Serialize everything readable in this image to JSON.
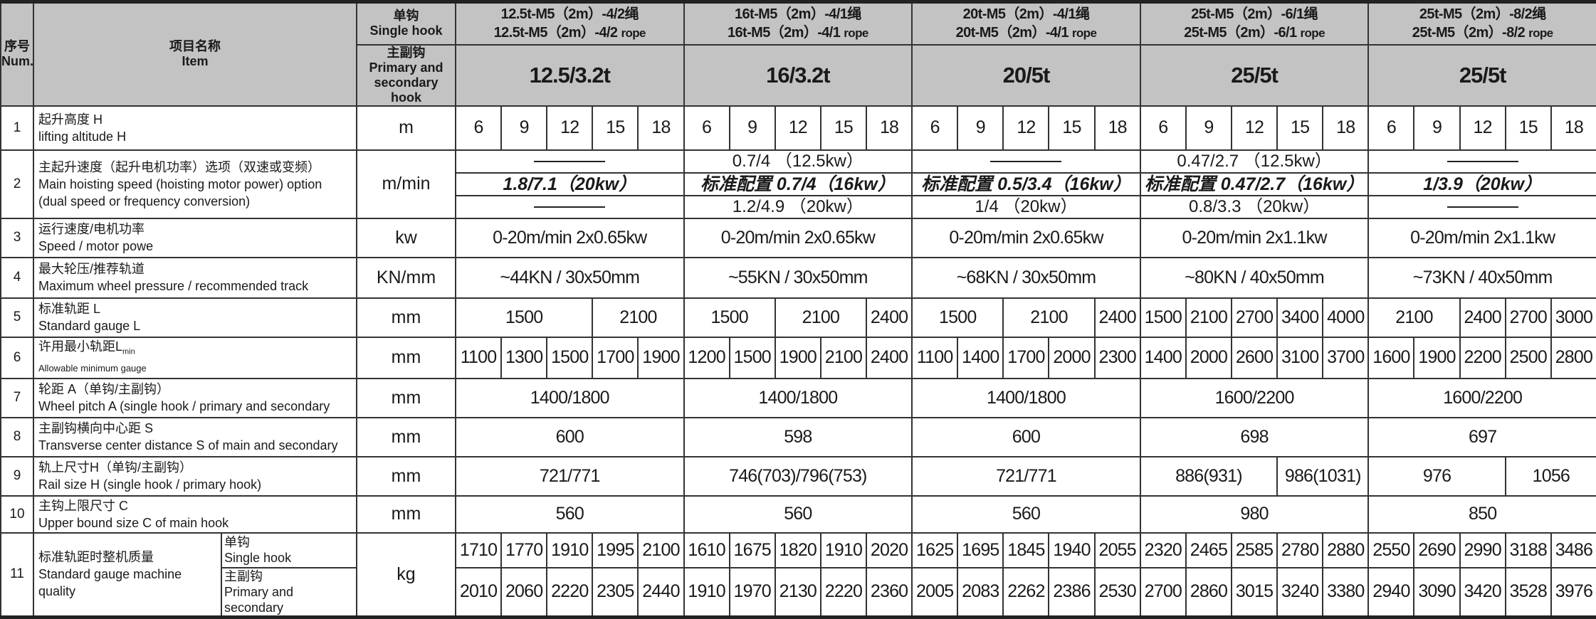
{
  "header": {
    "num_cn": "序号",
    "num_en": "Num.",
    "item_cn": "项目名称",
    "item_en": "Item",
    "single_cn": "单钩",
    "single_en": "Single hook",
    "primary_cn": "主副钩",
    "primary_en": "Primary and secondary hook",
    "groups": [
      {
        "line1": "12.5t-M5（2m）-4/2绳",
        "line2": "12.5t-M5（2m）-4/2",
        "rope": "rope",
        "capacity": "12.5/3.2t"
      },
      {
        "line1": "16t-M5（2m）-4/1绳",
        "line2": "16t-M5（2m）-4/1",
        "rope": "rope",
        "capacity": "16/3.2t"
      },
      {
        "line1": "20t-M5（2m）-4/1绳",
        "line2": "20t-M5（2m）-4/1",
        "rope": "rope",
        "capacity": "20/5t"
      },
      {
        "line1": "25t-M5（2m）-6/1绳",
        "line2": "25t-M5（2m）-6/1",
        "rope": "rope",
        "capacity": "25/5t"
      },
      {
        "line1": "25t-M5（2m）-8/2绳",
        "line2": "25t-M5（2m）-8/2",
        "rope": "rope",
        "capacity": "25/5t"
      }
    ]
  },
  "rows": [
    {
      "num": "1",
      "cn": "起升高度 H",
      "en": "lifting altitude H",
      "unit": "m",
      "groups": [
        [
          "6",
          "9",
          "12",
          "15",
          "18"
        ],
        [
          "6",
          "9",
          "12",
          "15",
          "18"
        ],
        [
          "6",
          "9",
          "12",
          "15",
          "18"
        ],
        [
          "6",
          "9",
          "12",
          "15",
          "18"
        ],
        [
          "6",
          "9",
          "12",
          "15",
          "18"
        ]
      ]
    },
    {
      "num": "2",
      "cn": "主起升速度（起升电机功率）选项（双速或变频）",
      "en": "Main hoisting speed (hoisting motor power) option",
      "en2": "(dual speed or frequency conversion)",
      "unit": "m/min",
      "speed": [
        [
          "—",
          "1.8/7.1（20kw）",
          "—"
        ],
        [
          "0.7/4 （12.5kw）",
          "标准配置 0.7/4（16kw）",
          "1.2/4.9 （20kw）"
        ],
        [
          "—",
          "标准配置 0.5/3.4（16kw）",
          "1/4 （20kw）"
        ],
        [
          "0.47/2.7 （12.5kw）",
          "标准配置 0.47/2.7（16kw）",
          "0.8/3.3 （20kw）"
        ],
        [
          "—",
          "1/3.9（20kw）",
          "—"
        ]
      ]
    },
    {
      "num": "3",
      "cn": "运行速度/电机功率",
      "en": "Speed / motor powe",
      "unit": "kw",
      "groups": [
        [
          "0-20m/min    2x0.65kw"
        ],
        [
          "0-20m/min    2x0.65kw"
        ],
        [
          "0-20m/min    2x0.65kw"
        ],
        [
          "0-20m/min    2x1.1kw"
        ],
        [
          "0-20m/min    2x1.1kw"
        ]
      ]
    },
    {
      "num": "4",
      "cn": "最大轮压/推荐轨道",
      "en": "Maximum wheel pressure / recommended track",
      "unit": "KN/mm",
      "groups": [
        [
          "~44KN  /  30x50mm"
        ],
        [
          "~55KN  /  30x50mm"
        ],
        [
          "~68KN  /  30x50mm"
        ],
        [
          "~80KN  /  40x50mm"
        ],
        [
          "~73KN  /  40x50mm"
        ]
      ]
    },
    {
      "num": "5",
      "cn": "标准轨距 L",
      "en": "Standard gauge L",
      "unit": "mm",
      "groups": [
        [
          "1500",
          "2100"
        ],
        [
          "1500",
          "2100",
          "2400"
        ],
        [
          "1500",
          "2100",
          "2400"
        ],
        [
          "1500",
          "2100",
          "2700",
          "3400",
          "4000"
        ],
        [
          "2100",
          "2400",
          "2700",
          "3000"
        ]
      ]
    },
    {
      "num": "6",
      "cn": "许用最小轨距L",
      "cn_sub": "min",
      "en": "Allowable minimum gauge",
      "unit": "mm",
      "groups": [
        [
          "1100",
          "1300",
          "1500",
          "1700",
          "1900"
        ],
        [
          "1200",
          "1500",
          "1900",
          "2100",
          "2400"
        ],
        [
          "1100",
          "1400",
          "1700",
          "2000",
          "2300"
        ],
        [
          "1400",
          "2000",
          "2600",
          "3100",
          "3700"
        ],
        [
          "1600",
          "1900",
          "2200",
          "2500",
          "2800"
        ]
      ]
    },
    {
      "num": "7",
      "cn": "轮距 A（单钩/主副钩）",
      "en": "Wheel pitch A (single hook / primary and secondary",
      "unit": "mm",
      "groups": [
        [
          "1400/1800"
        ],
        [
          "1400/1800"
        ],
        [
          "1400/1800"
        ],
        [
          "1600/2200"
        ],
        [
          "1600/2200"
        ]
      ]
    },
    {
      "num": "8",
      "cn": "主副钩横向中心距 S",
      "en": "Transverse center distance S of main and secondary",
      "unit": "mm",
      "groups": [
        [
          "600"
        ],
        [
          "598"
        ],
        [
          "600"
        ],
        [
          "698"
        ],
        [
          "697"
        ]
      ]
    },
    {
      "num": "9",
      "cn": "轨上尺寸H（单钩/主副钩）",
      "en": "Rail size H (single hook / primary hook)",
      "unit": "mm",
      "groups": [
        [
          "721/771"
        ],
        [
          "746(703)/796(753)"
        ],
        [
          "721/771"
        ],
        [
          "886(931)",
          "986(1031)"
        ],
        [
          "976",
          "1056"
        ]
      ]
    },
    {
      "num": "10",
      "cn": "主钩上限尺寸 C",
      "en": "Upper bound size C of main hook",
      "unit": "mm",
      "groups": [
        [
          "560"
        ],
        [
          "560"
        ],
        [
          "560"
        ],
        [
          "980"
        ],
        [
          "850"
        ]
      ]
    }
  ],
  "mass": {
    "num": "11",
    "cn": "标准轨距时整机质量",
    "en": "Standard gauge machine quality",
    "unit": "kg",
    "single_cn": "单钩",
    "single_en": "Single hook",
    "primary_cn": "主副钩",
    "primary_en": "Primary and secondary",
    "single": [
      [
        "1710",
        "1770",
        "1910",
        "1995",
        "2100"
      ],
      [
        "1610",
        "1675",
        "1820",
        "1910",
        "2020"
      ],
      [
        "1625",
        "1695",
        "1845",
        "1940",
        "2055"
      ],
      [
        "2320",
        "2465",
        "2585",
        "2780",
        "2880"
      ],
      [
        "2550",
        "2690",
        "2990",
        "3188",
        "3486"
      ]
    ],
    "primary": [
      [
        "2010",
        "2060",
        "2220",
        "2305",
        "2440"
      ],
      [
        "1910",
        "1970",
        "2130",
        "2220",
        "2360"
      ],
      [
        "2005",
        "2083",
        "2262",
        "2386",
        "2530"
      ],
      [
        "2700",
        "2860",
        "3015",
        "3240",
        "3380"
      ],
      [
        "2940",
        "3090",
        "3420",
        "3528",
        "3976"
      ]
    ]
  }
}
